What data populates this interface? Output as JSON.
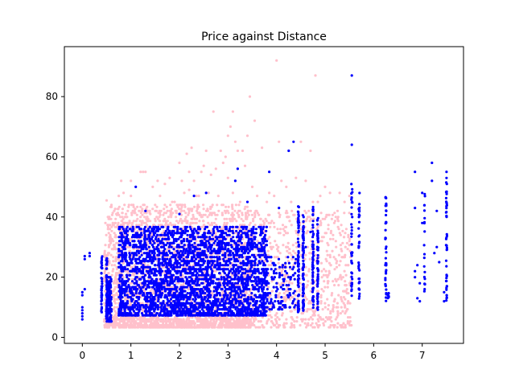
{
  "chart_data": {
    "type": "scatter",
    "title": "Price against Distance",
    "xlabel": "",
    "ylabel": "",
    "xlim": [
      -0.37,
      7.85
    ],
    "ylim": [
      -2,
      96.6
    ],
    "xticks": [
      0,
      1,
      2,
      3,
      4,
      5,
      6,
      7
    ],
    "xtick_labels": [
      "0",
      "1",
      "2",
      "3",
      "4",
      "5",
      "6",
      "7"
    ],
    "yticks": [
      0,
      20,
      40,
      60,
      80
    ],
    "ytick_labels": [
      "0",
      "20",
      "40",
      "60",
      "80"
    ],
    "grid": false,
    "legend": "none",
    "series": [
      {
        "color": "#ffc0cb",
        "points": [
          [
            0.5,
            45.5
          ],
          [
            0.6,
            44
          ],
          [
            0.7,
            41
          ],
          [
            0.75,
            47
          ],
          [
            0.8,
            52
          ],
          [
            0.85,
            48
          ],
          [
            0.9,
            41
          ],
          [
            1.0,
            47
          ],
          [
            1.0,
            52
          ],
          [
            1.05,
            44
          ],
          [
            1.2,
            55
          ],
          [
            1.25,
            55
          ],
          [
            1.3,
            55
          ],
          [
            1.4,
            41
          ],
          [
            1.45,
            50
          ],
          [
            1.5,
            44
          ],
          [
            1.55,
            52
          ],
          [
            1.6,
            47
          ],
          [
            1.7,
            44
          ],
          [
            1.7,
            51
          ],
          [
            1.8,
            53
          ],
          [
            1.85,
            45
          ],
          [
            1.9,
            45
          ],
          [
            1.95,
            44
          ],
          [
            2.0,
            58
          ],
          [
            2.05,
            52
          ],
          [
            2.1,
            48
          ],
          [
            2.15,
            61
          ],
          [
            2.2,
            49
          ],
          [
            2.2,
            55
          ],
          [
            2.25,
            63
          ],
          [
            2.3,
            52
          ],
          [
            2.35,
            47
          ],
          [
            2.4,
            47
          ],
          [
            2.45,
            55
          ],
          [
            2.5,
            57
          ],
          [
            2.55,
            62
          ],
          [
            2.6,
            48
          ],
          [
            2.65,
            54
          ],
          [
            2.7,
            75
          ],
          [
            2.75,
            56
          ],
          [
            2.8,
            47
          ],
          [
            2.85,
            62
          ],
          [
            2.9,
            58
          ],
          [
            2.95,
            60
          ],
          [
            3.0,
            67
          ],
          [
            3.0,
            53
          ],
          [
            3.05,
            70
          ],
          [
            3.1,
            75
          ],
          [
            3.1,
            48
          ],
          [
            3.15,
            65
          ],
          [
            3.2,
            62
          ],
          [
            3.25,
            45
          ],
          [
            3.3,
            62
          ],
          [
            3.35,
            57
          ],
          [
            3.4,
            67
          ],
          [
            3.45,
            80
          ],
          [
            3.5,
            50
          ],
          [
            3.55,
            72
          ],
          [
            3.6,
            47
          ],
          [
            3.7,
            63
          ],
          [
            3.8,
            45
          ],
          [
            3.85,
            48
          ],
          [
            3.95,
            47
          ],
          [
            4.0,
            92
          ],
          [
            4.05,
            65
          ],
          [
            4.1,
            52
          ],
          [
            4.2,
            50
          ],
          [
            4.3,
            45
          ],
          [
            4.4,
            53
          ],
          [
            4.5,
            65
          ],
          [
            4.6,
            52
          ],
          [
            4.7,
            62
          ],
          [
            4.75,
            45
          ],
          [
            4.8,
            87
          ],
          [
            4.85,
            45
          ],
          [
            4.9,
            47
          ],
          [
            5.0,
            50
          ],
          [
            5.1,
            48
          ],
          [
            5.3,
            48
          ],
          [
            5.4,
            45
          ],
          [
            5.5,
            47
          ]
        ],
        "bands": [
          {
            "x": [
              0.45,
              3.5
            ],
            "y": [
              3,
              44
            ],
            "count": 2400
          },
          {
            "x": [
              3.5,
              5.55
            ],
            "y": [
              3,
              42
            ],
            "count": 700
          },
          {
            "x": [
              0.45,
              3.5
            ],
            "y": [
              3,
              7
            ],
            "count": 500
          }
        ]
      },
      {
        "color": "#0000ff",
        "points": [
          [
            0.0,
            6
          ],
          [
            0.0,
            7
          ],
          [
            0.0,
            8
          ],
          [
            0.0,
            9
          ],
          [
            0.0,
            14
          ],
          [
            0.0,
            15
          ],
          [
            0.05,
            16
          ],
          [
            0.05,
            26
          ],
          [
            0.05,
            27
          ],
          [
            0.15,
            27
          ],
          [
            0.15,
            28
          ],
          [
            0.0,
            10
          ],
          [
            1.1,
            50
          ],
          [
            1.3,
            42
          ],
          [
            2.0,
            41
          ],
          [
            2.3,
            47
          ],
          [
            2.55,
            48
          ],
          [
            3.15,
            52
          ],
          [
            3.2,
            56
          ],
          [
            3.4,
            45
          ],
          [
            3.85,
            55
          ],
          [
            4.05,
            43
          ],
          [
            4.25,
            62
          ],
          [
            4.35,
            65
          ],
          [
            5.55,
            87
          ],
          [
            5.55,
            64
          ],
          [
            4.6,
            30
          ],
          [
            4.7,
            35
          ],
          [
            6.85,
            55
          ],
          [
            6.85,
            43
          ],
          [
            6.85,
            22
          ],
          [
            6.85,
            20
          ],
          [
            6.9,
            13
          ],
          [
            6.9,
            24
          ],
          [
            6.95,
            12
          ],
          [
            6.95,
            18
          ],
          [
            7.0,
            48
          ],
          [
            7.0,
            38
          ],
          [
            7.05,
            16
          ],
          [
            7.2,
            58
          ],
          [
            7.2,
            52
          ],
          [
            7.25,
            28
          ],
          [
            7.3,
            42
          ],
          [
            7.3,
            30
          ],
          [
            7.35,
            25
          ],
          [
            7.45,
            15
          ],
          [
            7.45,
            12
          ],
          [
            7.5,
            55
          ]
        ],
        "columns": [
          {
            "x": 5.55,
            "y": [
              13,
              51
            ],
            "count": 45
          },
          {
            "x": 5.7,
            "y": [
              10,
              48
            ],
            "count": 35
          },
          {
            "x": 6.25,
            "y": [
              12,
              47
            ],
            "count": 40
          },
          {
            "x": 6.3,
            "y": [
              13,
              15
            ],
            "count": 8
          },
          {
            "x": 7.5,
            "y": [
              12,
              53
            ],
            "count": 45
          },
          {
            "x": 7.05,
            "y": [
              14,
              52
            ],
            "count": 20
          },
          {
            "x": 4.45,
            "y": [
              8,
              44
            ],
            "count": 80
          },
          {
            "x": 4.55,
            "y": [
              8,
              41
            ],
            "count": 80
          },
          {
            "x": 4.75,
            "y": [
              8,
              44
            ],
            "count": 60
          },
          {
            "x": 4.85,
            "y": [
              8,
              40
            ],
            "count": 60
          },
          {
            "x": 0.4,
            "y": [
              5,
              27
            ],
            "count": 40
          },
          {
            "x": 0.5,
            "y": [
              6,
              27
            ],
            "count": 40
          }
        ],
        "bands": [
          {
            "x": [
              0.75,
              3.8
            ],
            "y": [
              7,
              37
            ],
            "count": 3000
          },
          {
            "x": 0.55,
            "y": [
              5,
              20
            ],
            "count": 150
          },
          {
            "x": [
              3.8,
              4.4
            ],
            "y": [
              9,
              27
            ],
            "count": 120
          }
        ]
      }
    ]
  }
}
